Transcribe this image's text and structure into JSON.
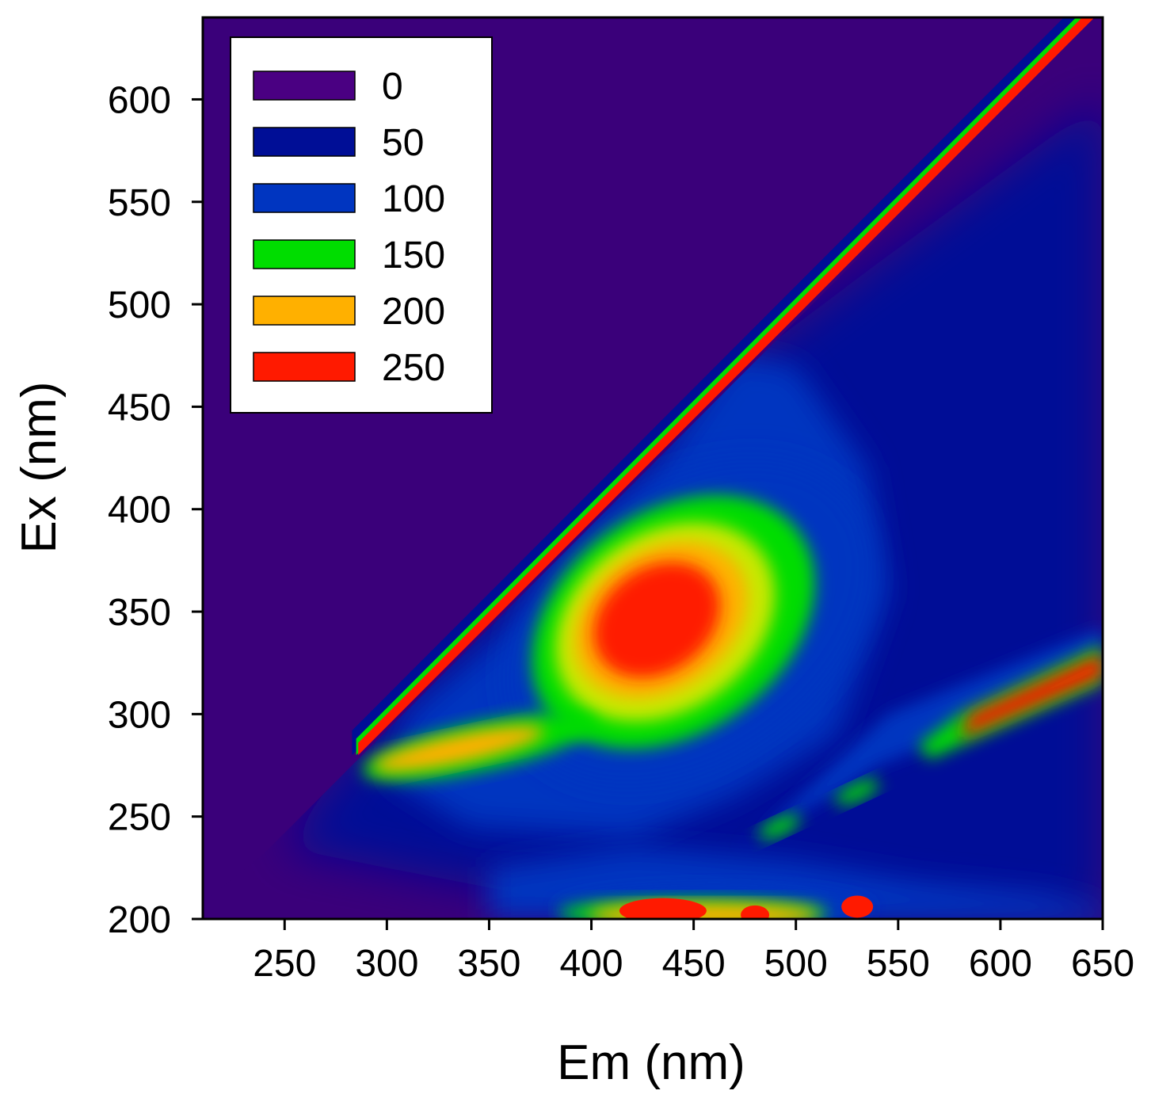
{
  "chart_data": {
    "type": "heatmap",
    "subtype": "filled-contour (EEM fluorescence map)",
    "title": "",
    "xlabel": "Em (nm)",
    "ylabel": "Ex (nm)",
    "xlim": [
      210,
      650
    ],
    "ylim": [
      200,
      640
    ],
    "x_ticks": [
      250,
      300,
      350,
      400,
      450,
      500,
      550,
      600,
      650
    ],
    "y_ticks": [
      200,
      250,
      300,
      350,
      400,
      450,
      500,
      550,
      600
    ],
    "grid": false,
    "legend_position": "top-left",
    "background_color": "#3a007a",
    "legend": [
      {
        "label": "0",
        "color": "#4a0082"
      },
      {
        "label": "50",
        "color": "#000e96"
      },
      {
        "label": "100",
        "color": "#0035c0"
      },
      {
        "label": "150",
        "color": "#00dd00"
      },
      {
        "label": "200",
        "color": "#ffb000"
      },
      {
        "label": "250",
        "color": "#ff1a00"
      }
    ],
    "levels": [
      0,
      50,
      100,
      150,
      200,
      250
    ],
    "features": [
      {
        "name": "Rayleigh scatter band (Em = Ex)",
        "em": [
          290,
          650
        ],
        "ex": [
          290,
          640
        ],
        "intensity": 255
      },
      {
        "name": "Main peak",
        "em": 432,
        "ex": 345,
        "intensity": 255
      },
      {
        "name": "Shoulder",
        "em": 335,
        "ex": 283,
        "intensity": 205
      },
      {
        "name": "Second-order scatter band (Em = 2·Ex)",
        "em": [
          560,
          650
        ],
        "ex": [
          280,
          325
        ],
        "intensity": 255
      },
      {
        "name": "Low-Ex band",
        "em": [
          380,
          555
        ],
        "ex": [
          200,
          220
        ],
        "intensity": 255
      },
      {
        "name": "Small island",
        "em": 492,
        "ex": 245,
        "intensity": 150
      },
      {
        "name": "Small island",
        "em": 530,
        "ex": 262,
        "intensity": 150
      }
    ]
  }
}
